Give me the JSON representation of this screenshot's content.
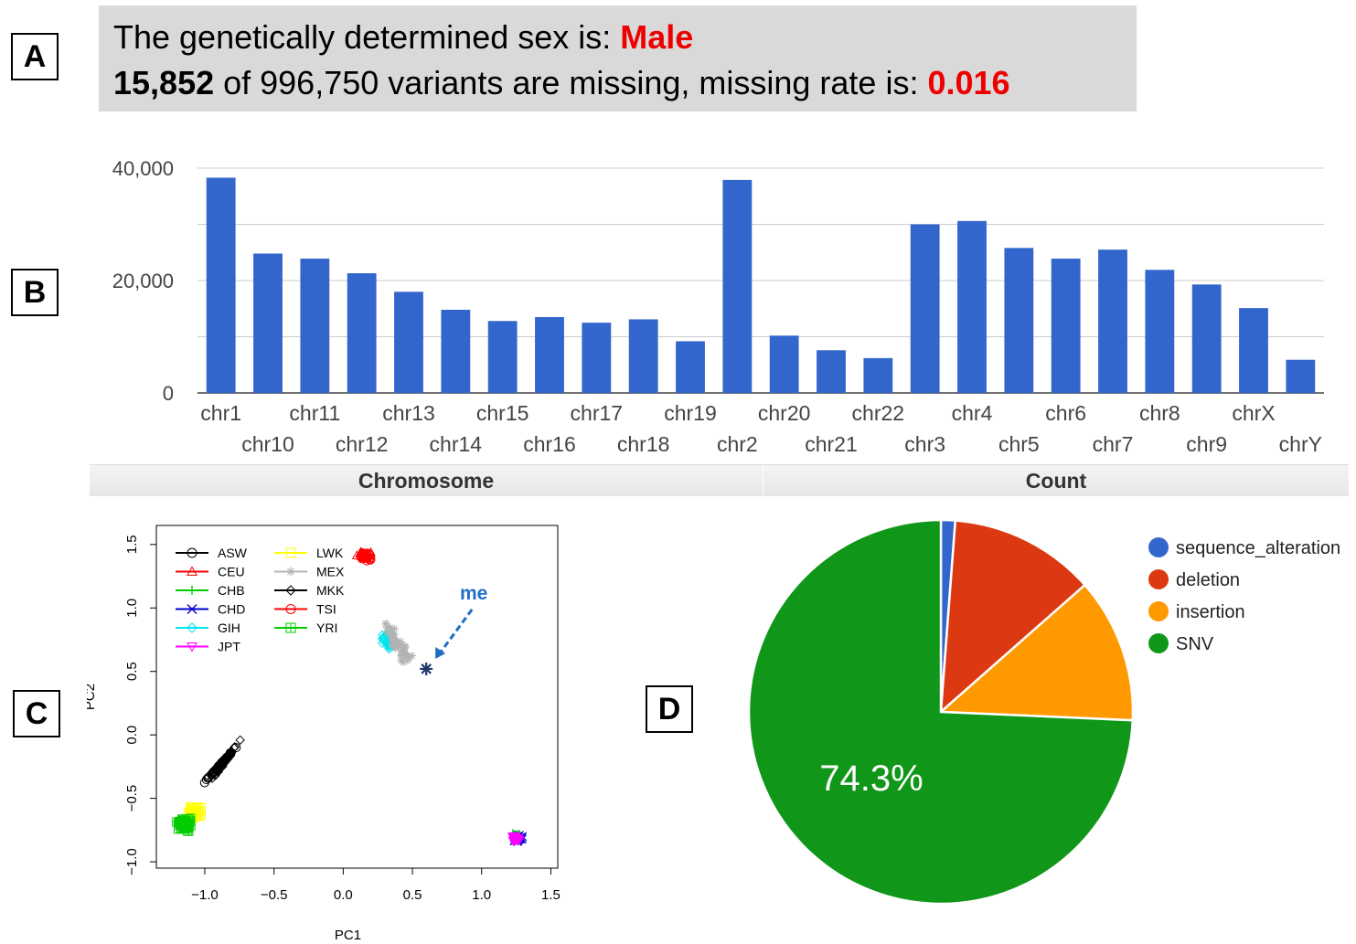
{
  "panels": {
    "a": "A",
    "b": "B",
    "c": "C",
    "d": "D"
  },
  "summary": {
    "line1_prefix": "The genetically determined sex is: ",
    "sex": "Male",
    "missing_count": "15,852",
    "line2_mid": " of 996,750 variants are missing, missing rate is: ",
    "missing_rate": "0.016"
  },
  "bar_footer": {
    "left": "Chromosome",
    "right": "Count"
  },
  "colors": {
    "bar": "#3366cc",
    "summary_bg": "#d9d9d9",
    "highlight": "#ee0000",
    "pie": [
      "#3366cc",
      "#dc3912",
      "#ff9900",
      "#109618"
    ]
  },
  "chart_data": [
    {
      "type": "bar",
      "categories": [
        "chr1",
        "chr10",
        "chr11",
        "chr12",
        "chr13",
        "chr14",
        "chr15",
        "chr16",
        "chr17",
        "chr18",
        "chr19",
        "chr2",
        "chr20",
        "chr21",
        "chr22",
        "chr3",
        "chr4",
        "chr5",
        "chr6",
        "chr7",
        "chr8",
        "chr9",
        "chrX",
        "chrY"
      ],
      "values": [
        38300,
        24800,
        23900,
        21300,
        18000,
        14800,
        12800,
        13500,
        12500,
        13100,
        9200,
        37900,
        10200,
        7600,
        6200,
        30000,
        30600,
        25800,
        23900,
        25500,
        21900,
        19300,
        15100,
        5900
      ],
      "yticks": [
        "0",
        "20,000",
        "40,000"
      ],
      "ylim": [
        0,
        40000
      ],
      "grid": true
    },
    {
      "type": "scatter",
      "xlabel": "PC1",
      "ylabel": "PC2",
      "xticks": [
        "−1.0",
        "−0.5",
        "0.0",
        "0.5",
        "1.0",
        "1.5"
      ],
      "yticks": [
        "−1.0",
        "−0.5",
        "0.0",
        "0.5",
        "1.0",
        "1.5"
      ],
      "xlim": [
        -1.35,
        1.55
      ],
      "ylim": [
        -1.05,
        1.65
      ],
      "legend": [
        {
          "name": "ASW",
          "color": "#000000",
          "marker": "circle"
        },
        {
          "name": "CEU",
          "color": "#ff0000",
          "marker": "triangle"
        },
        {
          "name": "CHB",
          "color": "#00cc00",
          "marker": "plus"
        },
        {
          "name": "CHD",
          "color": "#0000cc",
          "marker": "cross"
        },
        {
          "name": "GIH",
          "color": "#00e5ee",
          "marker": "diamond"
        },
        {
          "name": "JPT",
          "color": "#ff00ff",
          "marker": "triangle-down"
        },
        {
          "name": "LWK",
          "color": "#ffff00",
          "marker": "square"
        },
        {
          "name": "MEX",
          "color": "#b3b3b3",
          "marker": "star"
        },
        {
          "name": "MKK",
          "color": "#000000",
          "marker": "diamond"
        },
        {
          "name": "TSI",
          "color": "#ff0000",
          "marker": "circle"
        },
        {
          "name": "YRI",
          "color": "#00cc00",
          "marker": "square-plus"
        }
      ],
      "clusters": [
        {
          "pop": "ASW",
          "center": [
            -0.9,
            -0.25
          ],
          "spread": [
            0.18,
            0.22
          ],
          "n": 60
        },
        {
          "pop": "MKK",
          "center": [
            -0.85,
            -0.2
          ],
          "spread": [
            0.12,
            0.18
          ],
          "n": 50
        },
        {
          "pop": "LWK",
          "center": [
            -1.08,
            -0.6
          ],
          "spread": [
            0.07,
            0.06
          ],
          "n": 40
        },
        {
          "pop": "YRI",
          "center": [
            -1.15,
            -0.7
          ],
          "spread": [
            0.07,
            0.07
          ],
          "n": 60
        },
        {
          "pop": "CEU",
          "center": [
            0.15,
            1.42
          ],
          "spread": [
            0.06,
            0.04
          ],
          "n": 40
        },
        {
          "pop": "TSI",
          "center": [
            0.17,
            1.4
          ],
          "spread": [
            0.05,
            0.04
          ],
          "n": 30
        },
        {
          "pop": "GIH",
          "center": [
            0.32,
            0.75
          ],
          "spread": [
            0.06,
            0.1
          ],
          "n": 40
        },
        {
          "pop": "MEX",
          "center": [
            0.4,
            0.7
          ],
          "spread": [
            0.13,
            0.2
          ],
          "n": 45
        },
        {
          "pop": "CHB",
          "center": [
            1.25,
            -0.8
          ],
          "spread": [
            0.05,
            0.04
          ],
          "n": 30
        },
        {
          "pop": "CHD",
          "center": [
            1.26,
            -0.82
          ],
          "spread": [
            0.05,
            0.04
          ],
          "n": 25
        },
        {
          "pop": "JPT",
          "center": [
            1.24,
            -0.82
          ],
          "spread": [
            0.04,
            0.03
          ],
          "n": 35
        }
      ],
      "annotation": {
        "label": "me",
        "point": [
          0.6,
          0.52
        ],
        "color": "#1f6fc0"
      }
    },
    {
      "type": "pie",
      "slices": [
        {
          "label": "sequence_alteration",
          "value": 1.2,
          "color": "#3366cc"
        },
        {
          "label": "deletion",
          "value": 12.3,
          "color": "#dc3912"
        },
        {
          "label": "insertion",
          "value": 12.2,
          "color": "#ff9900"
        },
        {
          "label": "SNV",
          "value": 74.3,
          "color": "#109618"
        }
      ],
      "data_label": "74.3%",
      "legend_position": "right"
    }
  ]
}
